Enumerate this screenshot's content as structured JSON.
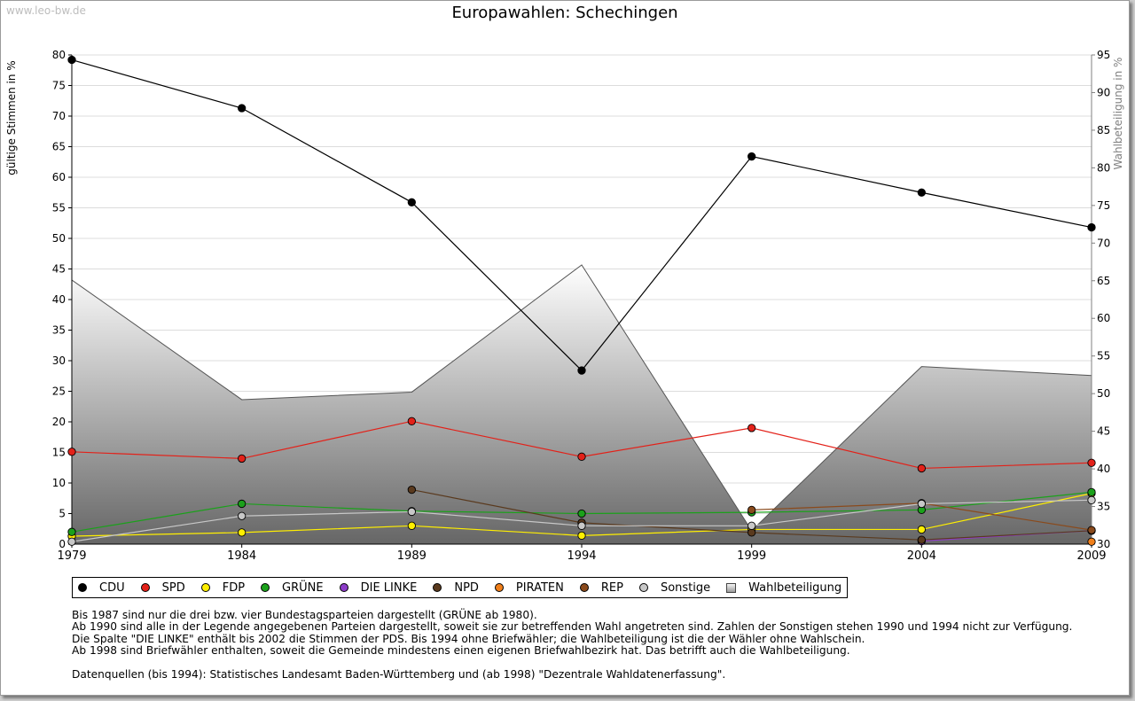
{
  "watermark": "www.leo-bw.de",
  "chart_data": {
    "type": "line",
    "title": "Europawahlen: Schechingen",
    "ylabel": "gültige Stimmen in %",
    "y2label": "Wahlbeteiligung in %",
    "x": [
      "1979",
      "1984",
      "1989",
      "1994",
      "1999",
      "2004",
      "2009"
    ],
    "ylim": [
      0,
      80
    ],
    "yticks": [
      0,
      5,
      10,
      15,
      20,
      25,
      30,
      35,
      40,
      45,
      50,
      55,
      60,
      65,
      70,
      75,
      80
    ],
    "y2lim": [
      30,
      95
    ],
    "y2ticks": [
      30,
      35,
      40,
      45,
      50,
      55,
      60,
      65,
      70,
      75,
      80,
      85,
      90,
      95
    ],
    "grid": true,
    "legend_position": "bottom",
    "series": [
      {
        "name": "CDU",
        "color": "#000000",
        "values": [
          79.2,
          71.3,
          55.9,
          28.4,
          63.4,
          57.5,
          51.8
        ]
      },
      {
        "name": "SPD",
        "color": "#e32119",
        "values": [
          15.1,
          14.0,
          20.1,
          14.3,
          19.0,
          12.4,
          13.3
        ]
      },
      {
        "name": "FDP",
        "color": "#ffef00",
        "values": [
          1.3,
          1.9,
          3.0,
          1.4,
          2.4,
          2.4,
          8.3
        ]
      },
      {
        "name": "GRÜNE",
        "color": "#1ba11b",
        "values": [
          2.0,
          6.6,
          5.4,
          5.0,
          5.2,
          5.6,
          8.5
        ]
      },
      {
        "name": "DIE LINKE",
        "color": "#8c3cc8",
        "values": [
          null,
          null,
          null,
          null,
          null,
          0.5,
          2.2
        ]
      },
      {
        "name": "NPD",
        "color": "#5a3a1e",
        "values": [
          null,
          null,
          8.9,
          3.5,
          1.9,
          0.7,
          2.2
        ]
      },
      {
        "name": "PIRATEN",
        "color": "#f07f1a",
        "values": [
          null,
          null,
          null,
          null,
          null,
          null,
          0.4
        ]
      },
      {
        "name": "REP",
        "color": "#8a4a1c",
        "values": [
          null,
          null,
          null,
          null,
          5.6,
          6.7,
          2.3
        ]
      },
      {
        "name": "Sonstige",
        "color": "#c8c8c8",
        "values": [
          0.4,
          4.6,
          5.3,
          3.0,
          3.0,
          6.6,
          7.2
        ]
      }
    ],
    "area_series": {
      "name": "Wahlbeteiligung",
      "axis": "right",
      "values": [
        65.1,
        49.2,
        50.2,
        67.1,
        31.8,
        53.6,
        52.4
      ]
    }
  },
  "notes": [
    "Bis 1987 sind nur die drei bzw. vier Bundestagsparteien dargestellt (GRÜNE ab 1980).",
    "Ab 1990 sind alle in der Legende angegebenen Parteien dargestellt, soweit sie zur betreffenden Wahl angetreten sind. Zahlen der Sonstigen stehen 1990 und 1994 nicht zur Verfügung.",
    "Die Spalte \"DIE LINKE\" enthält bis 2002 die Stimmen der PDS. Bis 1994 ohne Briefwähler; die Wahlbeteiligung ist die der Wähler ohne Wahlschein.",
    "Ab 1998 sind Briefwähler enthalten, soweit die Gemeinde mindestens einen eigenen Briefwahlbezirk hat. Das betrifft auch die Wahlbeteiligung.",
    "",
    "Datenquellen (bis 1994): Statistisches Landesamt Baden-Württemberg und (ab 1998) \"Dezentrale Wahldatenerfassung\"."
  ]
}
